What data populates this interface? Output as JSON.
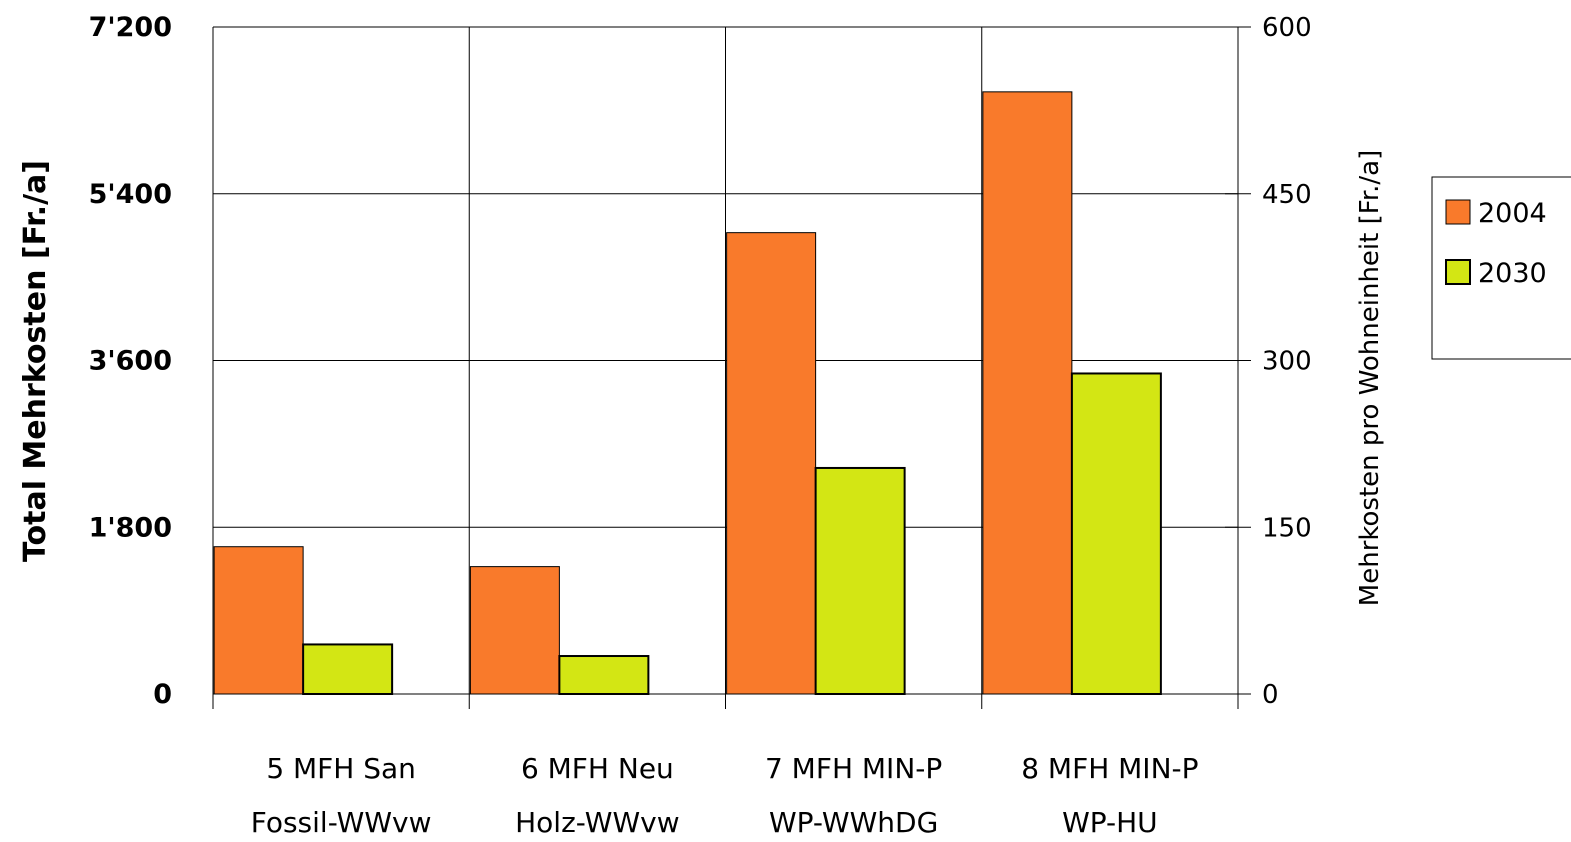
{
  "chart_data": {
    "type": "bar",
    "categories": [
      [
        "5 MFH San",
        "Fossil-WWvw"
      ],
      [
        "6 MFH Neu",
        "Holz-WWvw"
      ],
      [
        "7 MFH MIN-P",
        "WP-WWhDG"
      ],
      [
        "8 MFH MIN-P",
        "WP-HU"
      ]
    ],
    "series": [
      {
        "name": "2004",
        "color": "#F97A2B",
        "values": [
          1590,
          1375,
          4980,
          6500
        ]
      },
      {
        "name": "2030",
        "color": "#D3E614",
        "values": [
          535,
          410,
          2440,
          3460
        ]
      }
    ],
    "ylabel": "Total Mehrkosten [Fr./a]",
    "ylim": [
      0,
      7200
    ],
    "yticks": [
      "0",
      "1'800",
      "3'600",
      "5'400",
      "7'200"
    ],
    "ytick_values": [
      0,
      1800,
      3600,
      5400,
      7200
    ],
    "y2label": "Mehrkosten pro Wohneinheit [Fr./a]",
    "y2lim": [
      0,
      600
    ],
    "y2ticks": [
      "0",
      "150",
      "300",
      "450",
      "600"
    ],
    "y2tick_values": [
      0,
      150,
      300,
      450,
      600
    ],
    "grid": true,
    "legend_position": "right"
  }
}
